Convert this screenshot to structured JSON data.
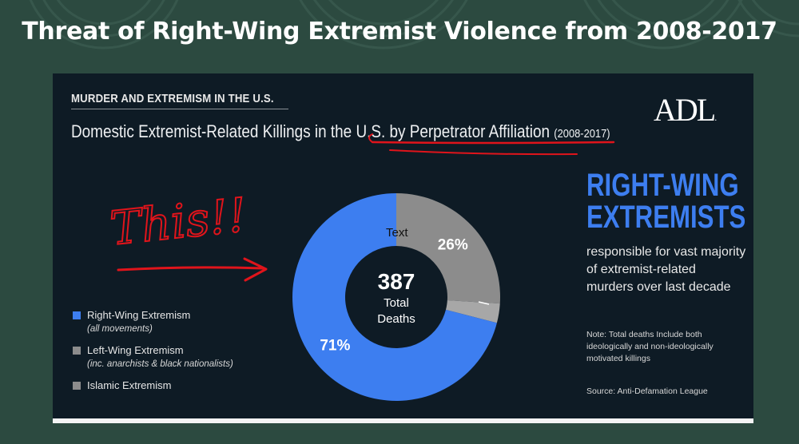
{
  "slide": {
    "title": "Threat of Right-Wing Extremist Violence from 2008-2017"
  },
  "infographic": {
    "kicker": "MURDER AND EXTREMISM IN THE U.S.",
    "subtitle_main": "Domestic Extremist-Related Killings in the U.S. by Perpetrator Affiliation",
    "subtitle_years": "(2008-2017)",
    "logo": "ADL",
    "logo_dot": ".",
    "headline_line1": "RIGHT-WING",
    "headline_line2": "EXTREMISTS",
    "headline_body": "responsible for vast majority of extremist-related murders over last decade",
    "note": "Note: Total deaths Include both ideologically and non-ideologically motivated killings",
    "source": "Source: Anti-Defamation League"
  },
  "annotation": {
    "handwritten": "This!!",
    "overlay_text": "Text"
  },
  "colors": {
    "right_wing": "#3d7ef0",
    "left_wing": "#8c8c8c",
    "islamic": "#a7a7a7",
    "panel": "#0e1b25",
    "underline": "#e0141b"
  },
  "chart_data": {
    "type": "pie",
    "center_value": "387",
    "center_label_line1": "Total",
    "center_label_line2": "Deaths",
    "slices": [
      {
        "name": "Right-Wing Extremism",
        "note": "(all movements)",
        "value": 71,
        "label": "71%"
      },
      {
        "name": "Left-Wing Extremism",
        "note": "(inc. anarchists & black nationalists)",
        "value": 26,
        "label": "26%"
      },
      {
        "name": "Islamic Extremism",
        "note": "",
        "value": 3,
        "label": "3%"
      }
    ]
  }
}
